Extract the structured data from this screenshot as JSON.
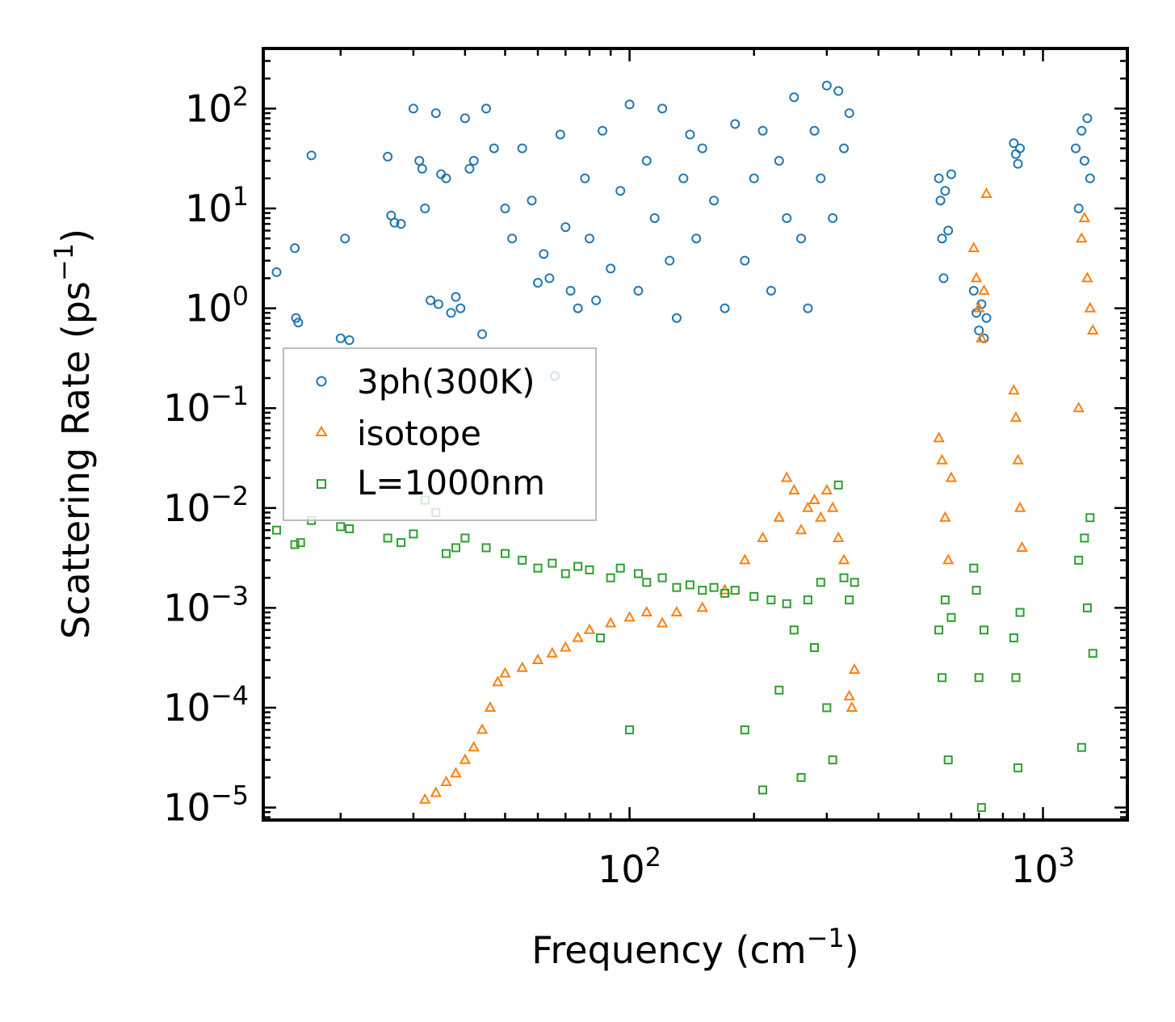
{
  "chart_data": {
    "type": "scatter",
    "title": "",
    "xlabel": "Frequency (cm",
    "xlabel_sup": "−1",
    "xlabel_end": ")",
    "ylabel": "Scattering Rate (ps",
    "ylabel_sup": "−1",
    "ylabel_end": ")",
    "x_scale": "log",
    "y_scale": "log",
    "xlim": [
      13,
      1600
    ],
    "ylim": [
      7.5e-06,
      400
    ],
    "x_ticks": [
      {
        "value": 100,
        "base": "10",
        "exp": "2"
      },
      {
        "value": 1000,
        "base": "10",
        "exp": "3"
      }
    ],
    "y_ticks": [
      {
        "value": 100,
        "base": "10",
        "exp": "2"
      },
      {
        "value": 10,
        "base": "10",
        "exp": "1"
      },
      {
        "value": 1,
        "base": "10",
        "exp": "0"
      },
      {
        "value": 0.1,
        "base": "10",
        "exp": "−1"
      },
      {
        "value": 0.01,
        "base": "10",
        "exp": "−2"
      },
      {
        "value": 0.001,
        "base": "10",
        "exp": "−3"
      },
      {
        "value": 0.0001,
        "base": "10",
        "exp": "−4"
      },
      {
        "value": 1e-05,
        "base": "10",
        "exp": "−5"
      }
    ],
    "legend_position": "center-left",
    "series": [
      {
        "name": "3ph(300K)",
        "marker": "circle",
        "color": "#1f77b4",
        "points": [
          [
            14,
            2.3
          ],
          [
            15.5,
            4.0
          ],
          [
            15.6,
            0.8
          ],
          [
            15.8,
            0.72
          ],
          [
            17,
            34
          ],
          [
            20,
            0.5
          ],
          [
            20.5,
            5.0
          ],
          [
            21,
            0.48
          ],
          [
            26,
            33
          ],
          [
            26.5,
            8.5
          ],
          [
            27,
            7.2
          ],
          [
            28,
            7.0
          ],
          [
            30,
            100
          ],
          [
            31,
            30
          ],
          [
            31.5,
            25
          ],
          [
            32,
            10
          ],
          [
            33,
            1.2
          ],
          [
            34,
            90
          ],
          [
            34.5,
            1.1
          ],
          [
            35,
            22
          ],
          [
            36,
            20
          ],
          [
            37,
            0.9
          ],
          [
            38,
            1.3
          ],
          [
            39,
            1.0
          ],
          [
            40,
            80
          ],
          [
            41,
            25
          ],
          [
            42,
            30
          ],
          [
            44,
            0.55
          ],
          [
            45,
            100
          ],
          [
            47,
            40
          ],
          [
            50,
            10
          ],
          [
            52,
            5.0
          ],
          [
            55,
            40
          ],
          [
            58,
            12
          ],
          [
            60,
            1.8
          ],
          [
            62,
            3.5
          ],
          [
            64,
            2.0
          ],
          [
            66,
            0.21
          ],
          [
            68,
            55
          ],
          [
            70,
            6.5
          ],
          [
            72,
            1.5
          ],
          [
            75,
            1.0
          ],
          [
            78,
            20
          ],
          [
            80,
            5.0
          ],
          [
            83,
            1.2
          ],
          [
            86,
            60
          ],
          [
            90,
            2.5
          ],
          [
            95,
            15
          ],
          [
            100,
            110
          ],
          [
            105,
            1.5
          ],
          [
            110,
            30
          ],
          [
            115,
            8.0
          ],
          [
            120,
            100
          ],
          [
            125,
            3.0
          ],
          [
            130,
            0.8
          ],
          [
            135,
            20
          ],
          [
            140,
            55
          ],
          [
            145,
            5.0
          ],
          [
            150,
            40
          ],
          [
            160,
            12
          ],
          [
            170,
            1.0
          ],
          [
            180,
            70
          ],
          [
            190,
            3.0
          ],
          [
            200,
            20
          ],
          [
            210,
            60
          ],
          [
            220,
            1.5
          ],
          [
            230,
            30
          ],
          [
            240,
            8.0
          ],
          [
            250,
            130
          ],
          [
            260,
            5.0
          ],
          [
            270,
            1.0
          ],
          [
            280,
            60
          ],
          [
            290,
            20
          ],
          [
            300,
            170
          ],
          [
            310,
            8.0
          ],
          [
            320,
            150
          ],
          [
            330,
            40
          ],
          [
            340,
            90
          ],
          [
            560,
            20
          ],
          [
            565,
            12
          ],
          [
            570,
            5.0
          ],
          [
            575,
            2.0
          ],
          [
            580,
            15
          ],
          [
            590,
            6.0
          ],
          [
            600,
            22
          ],
          [
            680,
            1.5
          ],
          [
            690,
            0.9
          ],
          [
            700,
            0.6
          ],
          [
            710,
            1.1
          ],
          [
            720,
            0.5
          ],
          [
            730,
            0.8
          ],
          [
            850,
            45
          ],
          [
            860,
            35
          ],
          [
            870,
            28
          ],
          [
            880,
            40
          ],
          [
            1200,
            40
          ],
          [
            1220,
            10
          ],
          [
            1240,
            60
          ],
          [
            1260,
            30
          ],
          [
            1280,
            80
          ],
          [
            1300,
            20
          ]
        ]
      },
      {
        "name": "isotope",
        "marker": "triangle",
        "color": "#ff7f0e",
        "points": [
          [
            32,
            1.2e-05
          ],
          [
            34,
            1.4e-05
          ],
          [
            36,
            1.8e-05
          ],
          [
            38,
            2.2e-05
          ],
          [
            40,
            3e-05
          ],
          [
            42,
            4e-05
          ],
          [
            44,
            6e-05
          ],
          [
            46,
            0.0001
          ],
          [
            48,
            0.00018
          ],
          [
            50,
            0.00022
          ],
          [
            55,
            0.00025
          ],
          [
            60,
            0.0003
          ],
          [
            65,
            0.00035
          ],
          [
            70,
            0.0004
          ],
          [
            75,
            0.0005
          ],
          [
            80,
            0.0006
          ],
          [
            90,
            0.0007
          ],
          [
            100,
            0.0008
          ],
          [
            110,
            0.0009
          ],
          [
            120,
            0.0007
          ],
          [
            130,
            0.0009
          ],
          [
            150,
            0.001
          ],
          [
            170,
            0.0015
          ],
          [
            190,
            0.003
          ],
          [
            210,
            0.005
          ],
          [
            230,
            0.008
          ],
          [
            240,
            0.02
          ],
          [
            250,
            0.015
          ],
          [
            260,
            0.006
          ],
          [
            270,
            0.01
          ],
          [
            280,
            0.012
          ],
          [
            290,
            0.008
          ],
          [
            300,
            0.015
          ],
          [
            310,
            0.01
          ],
          [
            320,
            0.005
          ],
          [
            330,
            0.003
          ],
          [
            340,
            0.00013
          ],
          [
            345,
            0.0001
          ],
          [
            350,
            0.00024
          ],
          [
            560,
            0.05
          ],
          [
            570,
            0.03
          ],
          [
            580,
            0.008
          ],
          [
            590,
            0.003
          ],
          [
            600,
            0.02
          ],
          [
            680,
            4.0
          ],
          [
            690,
            2.0
          ],
          [
            700,
            1.0
          ],
          [
            710,
            0.5
          ],
          [
            720,
            1.5
          ],
          [
            730,
            14
          ],
          [
            850,
            0.15
          ],
          [
            860,
            0.08
          ],
          [
            870,
            0.03
          ],
          [
            880,
            0.01
          ],
          [
            890,
            0.004
          ],
          [
            1220,
            0.1
          ],
          [
            1240,
            5.0
          ],
          [
            1260,
            8.0
          ],
          [
            1280,
            2.0
          ],
          [
            1300,
            1.0
          ],
          [
            1320,
            0.6
          ]
        ]
      },
      {
        "name": "L=1000nm",
        "marker": "square",
        "color": "#2ca02c",
        "points": [
          [
            14,
            0.006
          ],
          [
            15.5,
            0.0043
          ],
          [
            16,
            0.0045
          ],
          [
            17,
            0.0075
          ],
          [
            20,
            0.0065
          ],
          [
            21,
            0.0062
          ],
          [
            26,
            0.005
          ],
          [
            28,
            0.0045
          ],
          [
            30,
            0.0055
          ],
          [
            32,
            0.012
          ],
          [
            34,
            0.009
          ],
          [
            36,
            0.0035
          ],
          [
            38,
            0.004
          ],
          [
            40,
            0.005
          ],
          [
            45,
            0.004
          ],
          [
            50,
            0.0035
          ],
          [
            55,
            0.003
          ],
          [
            60,
            0.0025
          ],
          [
            65,
            0.0028
          ],
          [
            70,
            0.0022
          ],
          [
            75,
            0.0026
          ],
          [
            80,
            0.0024
          ],
          [
            85,
            0.0005
          ],
          [
            90,
            0.002
          ],
          [
            95,
            0.0025
          ],
          [
            100,
            6e-05
          ],
          [
            105,
            0.0022
          ],
          [
            110,
            0.0018
          ],
          [
            120,
            0.002
          ],
          [
            130,
            0.0016
          ],
          [
            140,
            0.0017
          ],
          [
            150,
            0.0015
          ],
          [
            160,
            0.0016
          ],
          [
            170,
            0.0014
          ],
          [
            180,
            0.0015
          ],
          [
            190,
            6e-05
          ],
          [
            200,
            0.0013
          ],
          [
            210,
            1.5e-05
          ],
          [
            220,
            0.0012
          ],
          [
            230,
            0.00015
          ],
          [
            240,
            0.0011
          ],
          [
            250,
            0.0006
          ],
          [
            260,
            2e-05
          ],
          [
            270,
            0.0012
          ],
          [
            280,
            0.0004
          ],
          [
            290,
            0.0018
          ],
          [
            300,
            0.0001
          ],
          [
            310,
            3e-05
          ],
          [
            320,
            0.017
          ],
          [
            330,
            0.002
          ],
          [
            340,
            0.0012
          ],
          [
            350,
            0.0018
          ],
          [
            560,
            0.0006
          ],
          [
            570,
            0.0002
          ],
          [
            580,
            0.0012
          ],
          [
            590,
            3e-05
          ],
          [
            600,
            0.0008
          ],
          [
            680,
            0.0025
          ],
          [
            690,
            0.0015
          ],
          [
            700,
            0.0002
          ],
          [
            710,
            1e-05
          ],
          [
            720,
            0.0006
          ],
          [
            850,
            0.0005
          ],
          [
            860,
            0.0002
          ],
          [
            870,
            2.5e-05
          ],
          [
            880,
            0.0009
          ],
          [
            1220,
            0.003
          ],
          [
            1240,
            4e-05
          ],
          [
            1260,
            0.005
          ],
          [
            1280,
            0.001
          ],
          [
            1300,
            0.008
          ],
          [
            1320,
            0.00035
          ]
        ]
      }
    ]
  }
}
